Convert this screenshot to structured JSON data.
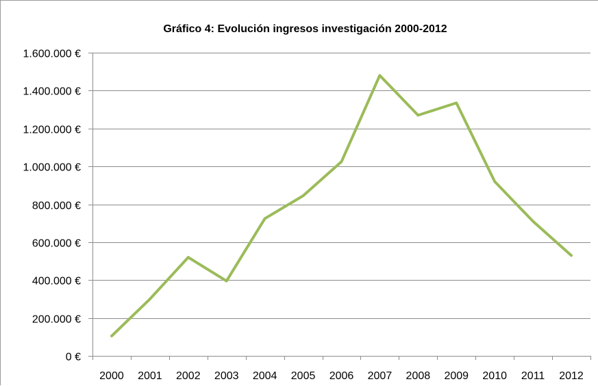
{
  "chart_data": {
    "type": "line",
    "title": "Gráfico 4: Evolución ingresos investigación 2000-2012",
    "xlabel": "",
    "ylabel": "",
    "categories": [
      "2000",
      "2001",
      "2002",
      "2003",
      "2004",
      "2005",
      "2006",
      "2007",
      "2008",
      "2009",
      "2010",
      "2011",
      "2012"
    ],
    "series": [
      {
        "values": [
          105000,
          300000,
          520000,
          395000,
          725000,
          845000,
          1025000,
          1480000,
          1270000,
          1335000,
          920000,
          710000,
          530000
        ],
        "color": "#9bbb59"
      }
    ],
    "ylim": [
      0,
      1600000
    ],
    "yticks": [
      0,
      200000,
      400000,
      600000,
      800000,
      1000000,
      1200000,
      1400000,
      1600000
    ],
    "ytick_labels": [
      "0 €",
      "200.000 €",
      "400.000 €",
      "600.000 €",
      "800.000 €",
      "1.000.000 €",
      "1.200.000 €",
      "1.400.000 €",
      "1.600.000 €"
    ],
    "grid": true,
    "legend": "none",
    "colors": {
      "line": "#9bbb59",
      "grid": "#8c8c8c",
      "axis": "#8c8c8c"
    }
  }
}
